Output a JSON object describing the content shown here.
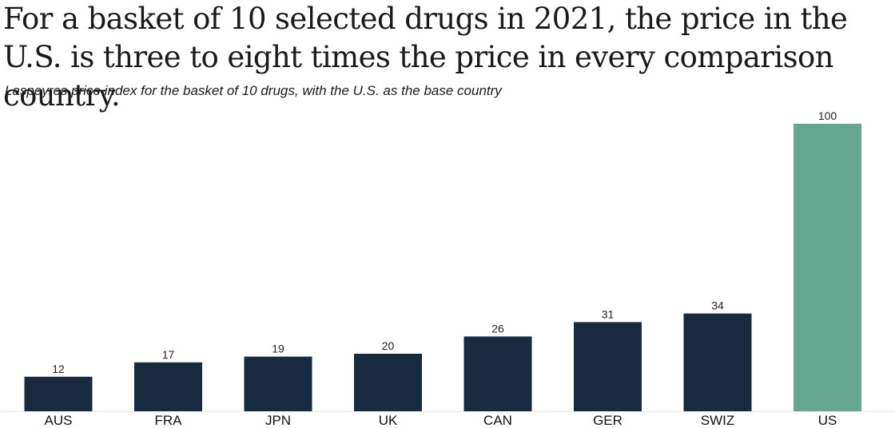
{
  "chart_data": {
    "type": "bar",
    "title": "For a basket of 10 selected drugs in 2021, the price in the U.S. is three to eight times the price in every comparison country.",
    "subtitle": "Laspeyres price index for the basket of 10 drugs, with the U.S. as the base country",
    "xlabel": "",
    "ylabel": "",
    "ylim": [
      0,
      100
    ],
    "grid": false,
    "categories": [
      "AUS",
      "FRA",
      "JPN",
      "UK",
      "CAN",
      "GER",
      "SWIZ",
      "US"
    ],
    "values": [
      12,
      17,
      19,
      20,
      26,
      31,
      34,
      100
    ],
    "colors": {
      "default": "#172a3f",
      "highlight": "#64a68f",
      "baseline": "#e6e6e6"
    },
    "highlight_category": "US"
  }
}
